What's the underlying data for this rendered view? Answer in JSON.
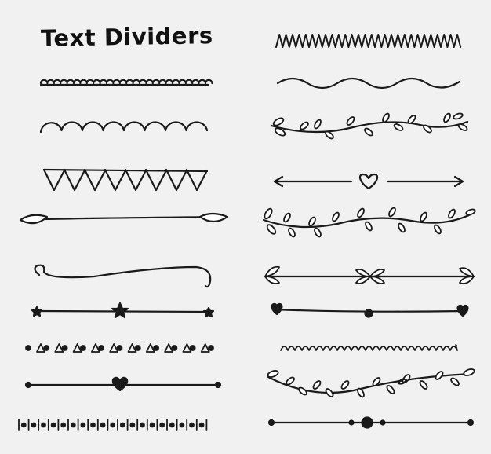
{
  "title": "Text Dividers",
  "ink_color": "#1a1a1a",
  "background_color": "#f1f1f1",
  "left_column": [
    "scallop-small-divider",
    "scallop-large-divider",
    "triangle-bunting-divider",
    "leaf-arrow-divider",
    "curly-swash-divider",
    "star-line-divider",
    "dot-triangle-pattern-divider",
    "heart-line-divider",
    "dot-bar-pattern-divider"
  ],
  "right_column": [
    "zigzag-divider",
    "wave-divider",
    "vine-leaf-divider",
    "heart-arrow-divider",
    "leaf-garland-divider",
    "leaf-bow-divider",
    "heart-dot-line-divider",
    "small-wave-divider",
    "leaf-swag-divider",
    "dotted-center-line-divider"
  ]
}
